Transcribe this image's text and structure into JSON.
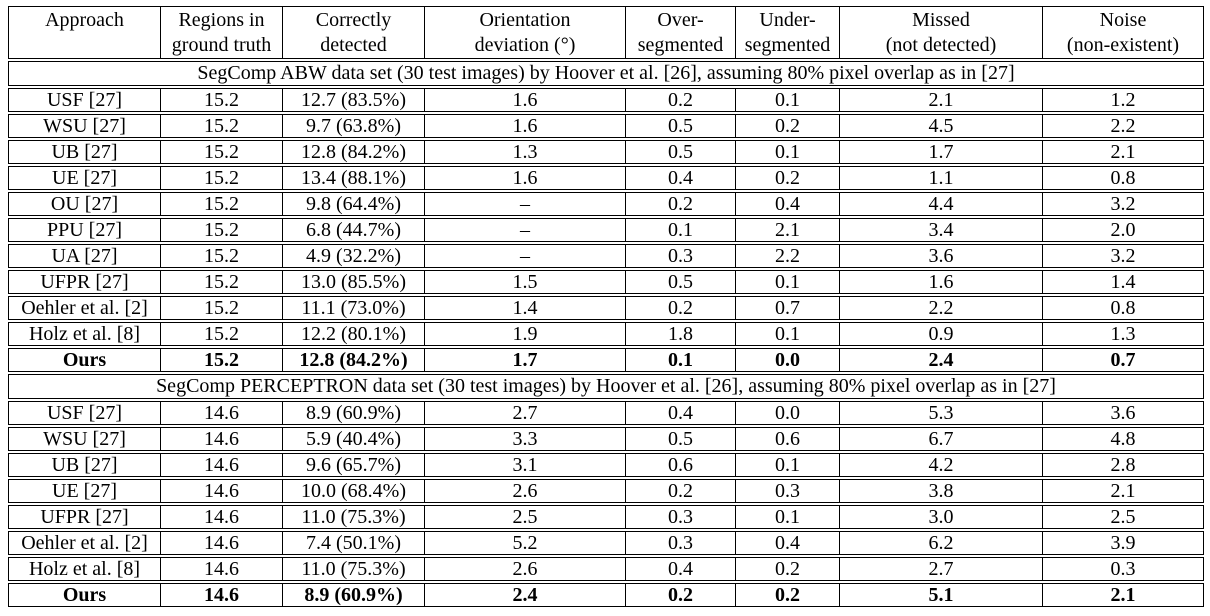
{
  "page": {
    "background_color": "#ffffff",
    "text_color": "#000000",
    "border_color": "#000000"
  },
  "table": {
    "columns": [
      {
        "line1": "Approach",
        "line2": ""
      },
      {
        "line1": "Regions in",
        "line2": "ground truth"
      },
      {
        "line1": "Correctly",
        "line2": "detected"
      },
      {
        "line1": "Orientation",
        "line2": "deviation (°)"
      },
      {
        "line1": "Over-",
        "line2": "segmented"
      },
      {
        "line1": "Under-",
        "line2": "segmented"
      },
      {
        "line1": "Missed",
        "line2": "(not detected)"
      },
      {
        "line1": "Noise",
        "line2": "(non-existent)"
      }
    ],
    "sections": [
      {
        "title": "SegComp ABW data set (30 test images) by Hoover et al. [26], assuming 80% pixel overlap as in [27]",
        "rows": [
          {
            "approach": "USF [27]",
            "bold": false,
            "values": [
              "15.2",
              "12.7 (83.5%)",
              "1.6",
              "0.2",
              "0.1",
              "2.1",
              "1.2"
            ]
          },
          {
            "approach": "WSU [27]",
            "bold": false,
            "values": [
              "15.2",
              "9.7 (63.8%)",
              "1.6",
              "0.5",
              "0.2",
              "4.5",
              "2.2"
            ]
          },
          {
            "approach": "UB [27]",
            "bold": false,
            "values": [
              "15.2",
              "12.8 (84.2%)",
              "1.3",
              "0.5",
              "0.1",
              "1.7",
              "2.1"
            ]
          },
          {
            "approach": "UE [27]",
            "bold": false,
            "values": [
              "15.2",
              "13.4 (88.1%)",
              "1.6",
              "0.4",
              "0.2",
              "1.1",
              "0.8"
            ]
          },
          {
            "approach": "OU [27]",
            "bold": false,
            "values": [
              "15.2",
              "9.8 (64.4%)",
              "–",
              "0.2",
              "0.4",
              "4.4",
              "3.2"
            ]
          },
          {
            "approach": "PPU [27]",
            "bold": false,
            "values": [
              "15.2",
              "6.8 (44.7%)",
              "–",
              "0.1",
              "2.1",
              "3.4",
              "2.0"
            ]
          },
          {
            "approach": "UA [27]",
            "bold": false,
            "values": [
              "15.2",
              "4.9 (32.2%)",
              "–",
              "0.3",
              "2.2",
              "3.6",
              "3.2"
            ]
          },
          {
            "approach": "UFPR [27]",
            "bold": false,
            "values": [
              "15.2",
              "13.0 (85.5%)",
              "1.5",
              "0.5",
              "0.1",
              "1.6",
              "1.4"
            ]
          },
          {
            "approach": "Oehler et al. [2]",
            "bold": false,
            "values": [
              "15.2",
              "11.1 (73.0%)",
              "1.4",
              "0.2",
              "0.7",
              "2.2",
              "0.8"
            ]
          },
          {
            "approach": "Holz et al. [8]",
            "bold": false,
            "values": [
              "15.2",
              "12.2 (80.1%)",
              "1.9",
              "1.8",
              "0.1",
              "0.9",
              "1.3"
            ]
          },
          {
            "approach": "Ours",
            "bold": true,
            "values": [
              "15.2",
              "12.8 (84.2%)",
              "1.7",
              "0.1",
              "0.0",
              "2.4",
              "0.7"
            ]
          }
        ]
      },
      {
        "title": "SegComp PERCEPTRON data set (30 test images) by Hoover et al. [26], assuming 80% pixel overlap as in [27]",
        "rows": [
          {
            "approach": "USF [27]",
            "bold": false,
            "values": [
              "14.6",
              "8.9 (60.9%)",
              "2.7",
              "0.4",
              "0.0",
              "5.3",
              "3.6"
            ]
          },
          {
            "approach": "WSU [27]",
            "bold": false,
            "values": [
              "14.6",
              "5.9 (40.4%)",
              "3.3",
              "0.5",
              "0.6",
              "6.7",
              "4.8"
            ]
          },
          {
            "approach": "UB [27]",
            "bold": false,
            "values": [
              "14.6",
              "9.6 (65.7%)",
              "3.1",
              "0.6",
              "0.1",
              "4.2",
              "2.8"
            ]
          },
          {
            "approach": "UE [27]",
            "bold": false,
            "values": [
              "14.6",
              "10.0 (68.4%)",
              "2.6",
              "0.2",
              "0.3",
              "3.8",
              "2.1"
            ]
          },
          {
            "approach": "UFPR [27]",
            "bold": false,
            "values": [
              "14.6",
              "11.0 (75.3%)",
              "2.5",
              "0.3",
              "0.1",
              "3.0",
              "2.5"
            ]
          },
          {
            "approach": "Oehler et al. [2]",
            "bold": false,
            "values": [
              "14.6",
              "7.4 (50.1%)",
              "5.2",
              "0.3",
              "0.4",
              "6.2",
              "3.9"
            ]
          },
          {
            "approach": "Holz et al. [8]",
            "bold": false,
            "values": [
              "14.6",
              "11.0 (75.3%)",
              "2.6",
              "0.4",
              "0.2",
              "2.7",
              "0.3"
            ]
          },
          {
            "approach": "Ours",
            "bold": true,
            "values": [
              "14.6",
              "8.9 (60.9%)",
              "2.4",
              "0.2",
              "0.2",
              "5.1",
              "2.1"
            ]
          }
        ]
      }
    ]
  }
}
